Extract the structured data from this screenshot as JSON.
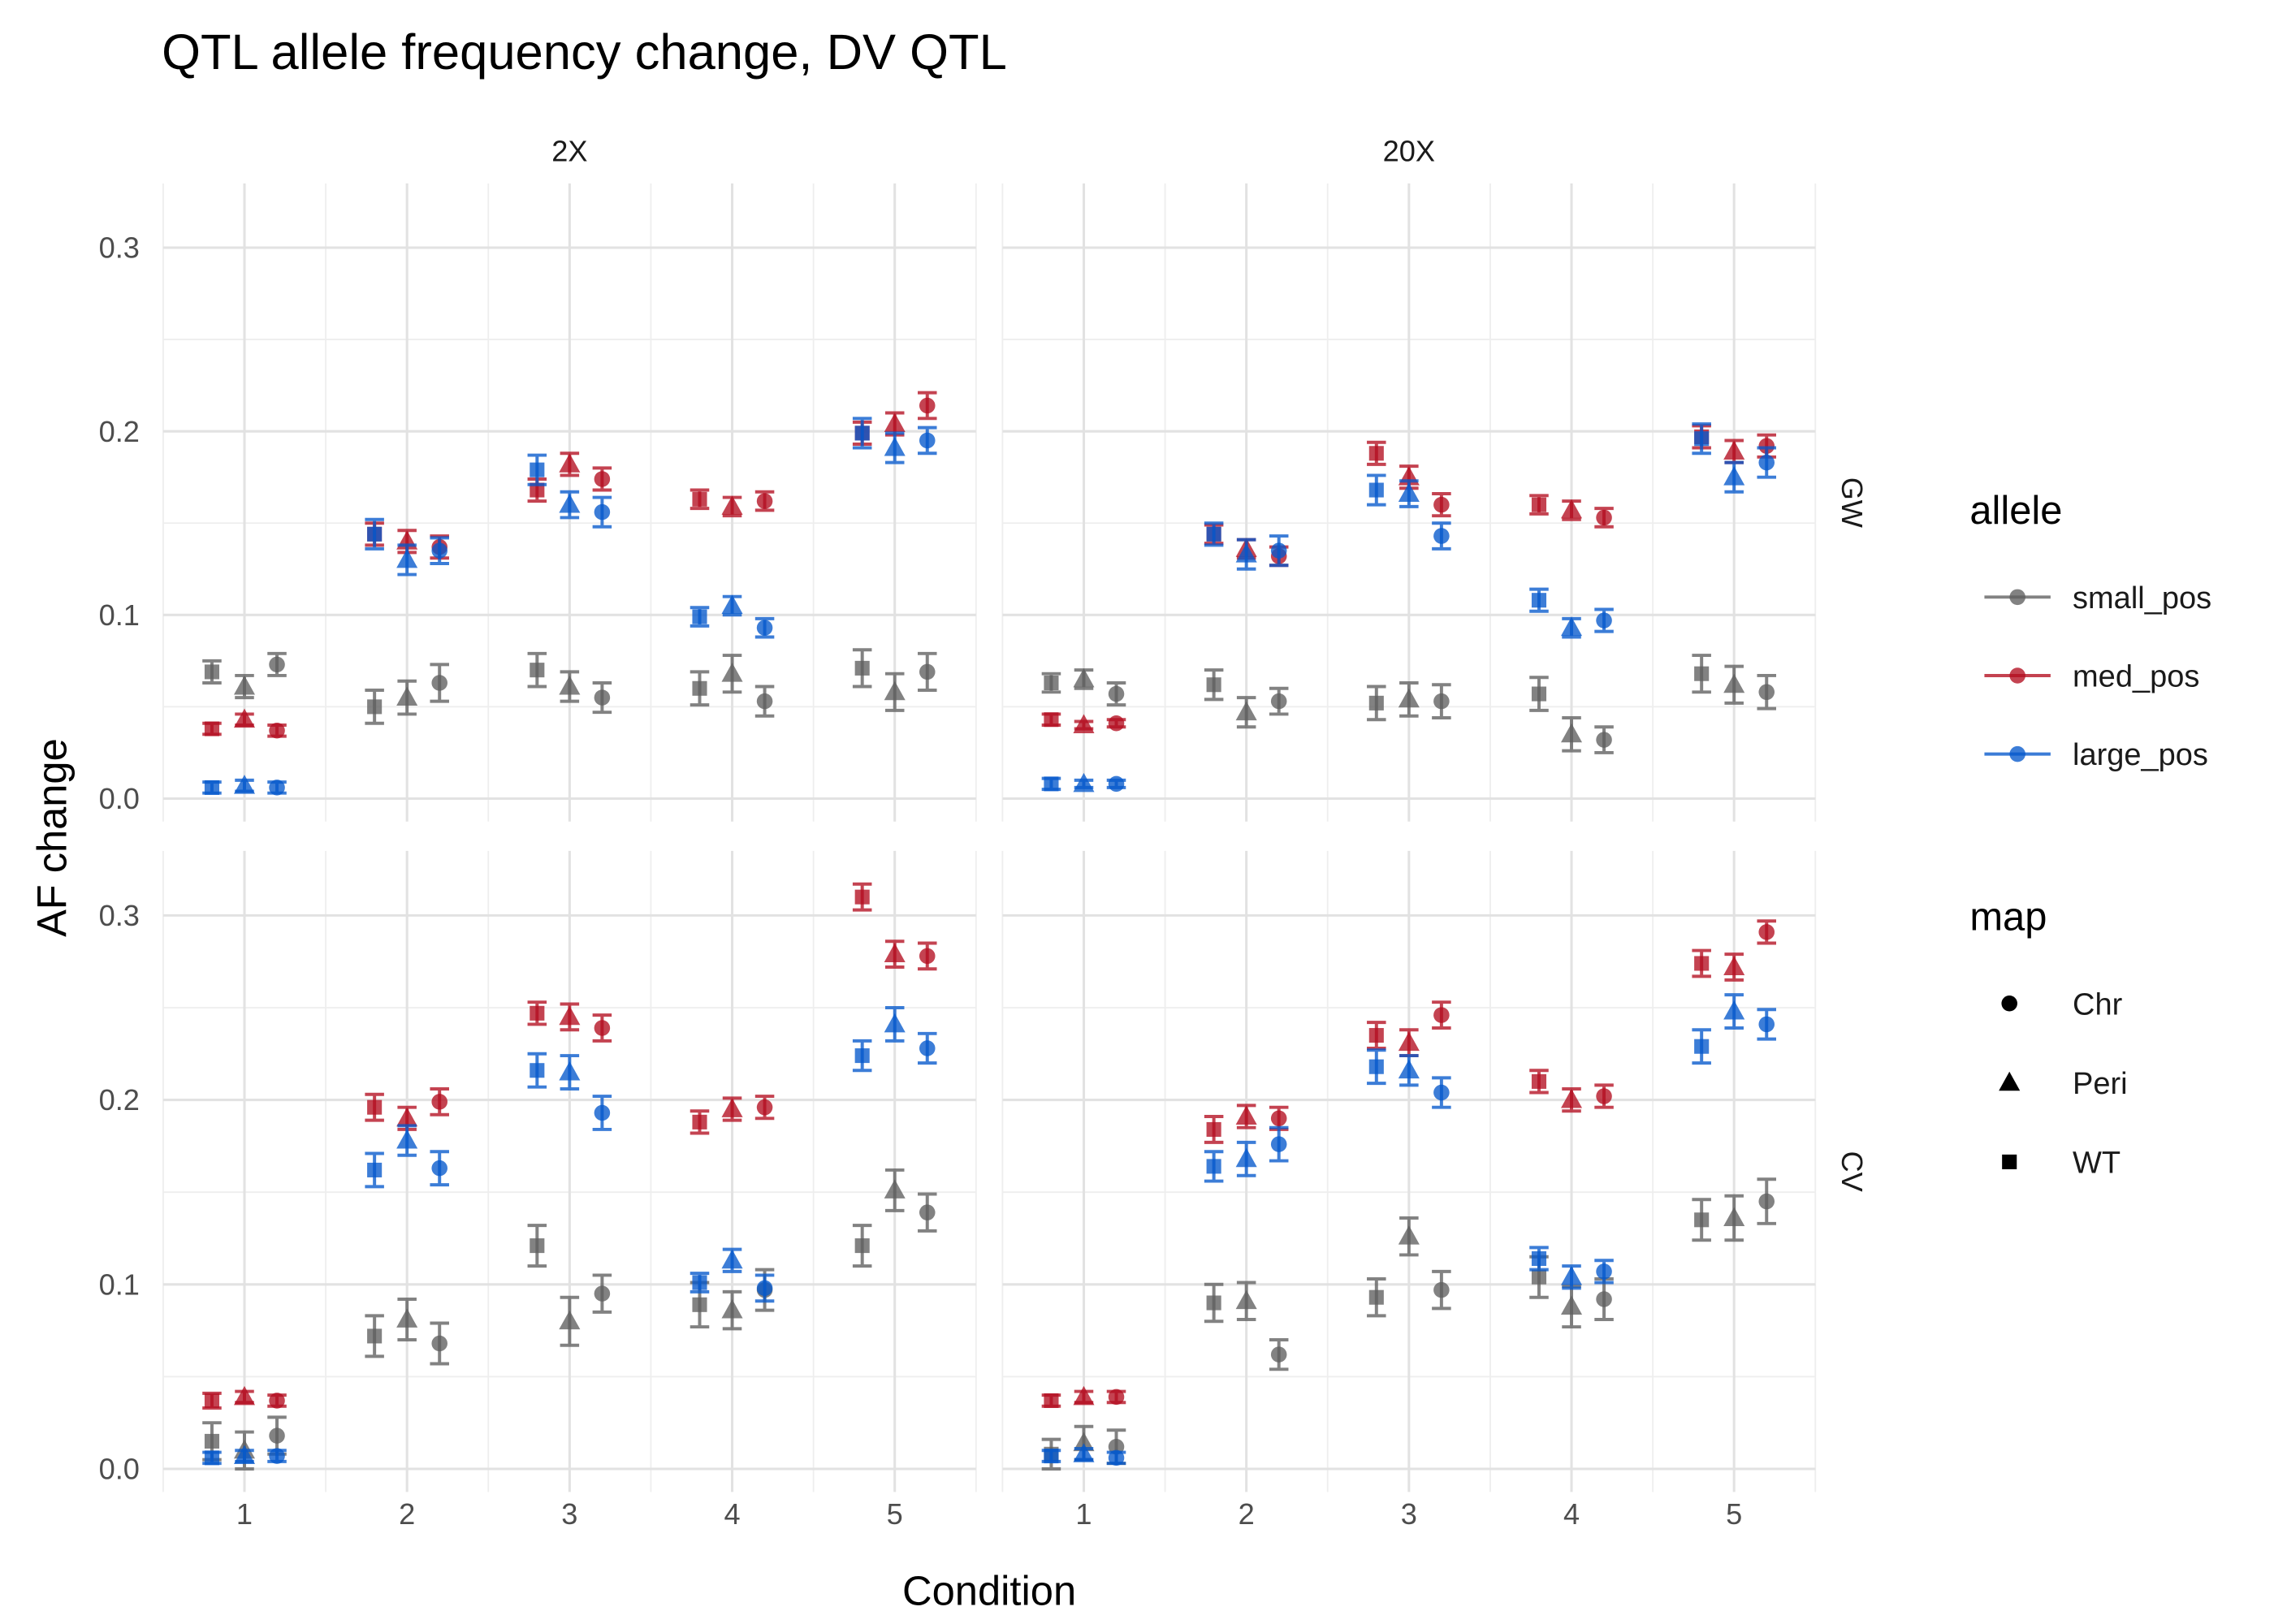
{
  "chart_data": {
    "type": "scatter",
    "title": "QTL allele frequency change, DV QTL",
    "xlabel": "Condition",
    "ylabel": "AF change",
    "x": [
      1,
      2,
      3,
      4,
      5
    ],
    "x_ticks": [
      1,
      2,
      3,
      4,
      5
    ],
    "y_ticks": [
      0,
      0.1,
      0.2,
      0.3
    ],
    "y_tick_labels": [
      "0.0",
      "0.1",
      "0.2",
      "0.3"
    ],
    "xlim": [
      0.5,
      5.5
    ],
    "ylim": [
      -0.0125,
      0.335
    ],
    "grid": true,
    "legend_position": "right",
    "facet_cols": [
      "2X",
      "20X"
    ],
    "facet_rows": [
      "GW",
      "CV"
    ],
    "legend": {
      "allele": {
        "title": "allele",
        "items": [
          {
            "name": "small_pos",
            "color": "#5f5f5f"
          },
          {
            "name": "med_pos",
            "color": "#b40e20"
          },
          {
            "name": "large_pos",
            "color": "#0558cc"
          }
        ]
      },
      "map": {
        "title": "map",
        "items": [
          {
            "name": "Chr",
            "shape": "circle"
          },
          {
            "name": "Peri",
            "shape": "triangle"
          },
          {
            "name": "WT",
            "shape": "square"
          }
        ]
      }
    },
    "facets": [
      {
        "col": "2X",
        "row": "GW",
        "series": [
          {
            "allele": "small_pos",
            "map": "WT",
            "values": [
              0.069,
              0.05,
              0.07,
              0.06,
              0.071
            ],
            "err": [
              0.006,
              0.009,
              0.009,
              0.009,
              0.01
            ]
          },
          {
            "allele": "small_pos",
            "map": "Peri",
            "values": [
              0.061,
              0.055,
              0.061,
              0.068,
              0.058
            ],
            "err": [
              0.006,
              0.009,
              0.008,
              0.01,
              0.01
            ]
          },
          {
            "allele": "small_pos",
            "map": "Chr",
            "values": [
              0.073,
              0.063,
              0.055,
              0.053,
              0.069
            ],
            "err": [
              0.006,
              0.01,
              0.008,
              0.008,
              0.01
            ]
          },
          {
            "allele": "med_pos",
            "map": "WT",
            "values": [
              0.038,
              0.144,
              0.168,
              0.163,
              0.199
            ],
            "err": [
              0.003,
              0.006,
              0.006,
              0.005,
              0.006
            ]
          },
          {
            "allele": "med_pos",
            "map": "Peri",
            "values": [
              0.043,
              0.14,
              0.182,
              0.159,
              0.204
            ],
            "err": [
              0.003,
              0.006,
              0.006,
              0.005,
              0.006
            ]
          },
          {
            "allele": "med_pos",
            "map": "Chr",
            "values": [
              0.037,
              0.137,
              0.174,
              0.162,
              0.214
            ],
            "err": [
              0.003,
              0.006,
              0.006,
              0.005,
              0.007
            ]
          },
          {
            "allele": "large_pos",
            "map": "WT",
            "values": [
              0.006,
              0.144,
              0.179,
              0.099,
              0.199
            ],
            "err": [
              0.003,
              0.008,
              0.008,
              0.005,
              0.008
            ]
          },
          {
            "allele": "large_pos",
            "map": "Peri",
            "values": [
              0.007,
              0.13,
              0.16,
              0.105,
              0.191
            ],
            "err": [
              0.003,
              0.008,
              0.007,
              0.005,
              0.008
            ]
          },
          {
            "allele": "large_pos",
            "map": "Chr",
            "values": [
              0.006,
              0.135,
              0.156,
              0.093,
              0.195
            ],
            "err": [
              0.003,
              0.007,
              0.008,
              0.005,
              0.007
            ]
          }
        ]
      },
      {
        "col": "20X",
        "row": "GW",
        "series": [
          {
            "allele": "small_pos",
            "map": "WT",
            "values": [
              0.063,
              0.062,
              0.052,
              0.057,
              0.068
            ],
            "err": [
              0.005,
              0.008,
              0.009,
              0.009,
              0.01
            ]
          },
          {
            "allele": "small_pos",
            "map": "Peri",
            "values": [
              0.065,
              0.047,
              0.054,
              0.035,
              0.062
            ],
            "err": [
              0.005,
              0.008,
              0.009,
              0.009,
              0.01
            ]
          },
          {
            "allele": "small_pos",
            "map": "Chr",
            "values": [
              0.057,
              0.053,
              0.053,
              0.032,
              0.058
            ],
            "err": [
              0.006,
              0.007,
              0.009,
              0.007,
              0.009
            ]
          },
          {
            "allele": "med_pos",
            "map": "WT",
            "values": [
              0.043,
              0.144,
              0.188,
              0.16,
              0.197
            ],
            "err": [
              0.003,
              0.005,
              0.006,
              0.005,
              0.006
            ]
          },
          {
            "allele": "med_pos",
            "map": "Peri",
            "values": [
              0.04,
              0.136,
              0.175,
              0.157,
              0.189
            ],
            "err": [
              0.002,
              0.005,
              0.006,
              0.005,
              0.006
            ]
          },
          {
            "allele": "med_pos",
            "map": "Chr",
            "values": [
              0.041,
              0.132,
              0.16,
              0.153,
              0.192
            ],
            "err": [
              0.002,
              0.005,
              0.006,
              0.005,
              0.006
            ]
          },
          {
            "allele": "large_pos",
            "map": "WT",
            "values": [
              0.008,
              0.144,
              0.168,
              0.108,
              0.196
            ],
            "err": [
              0.003,
              0.006,
              0.008,
              0.006,
              0.008
            ]
          },
          {
            "allele": "large_pos",
            "map": "Peri",
            "values": [
              0.008,
              0.133,
              0.166,
              0.093,
              0.175
            ],
            "err": [
              0.002,
              0.008,
              0.007,
              0.005,
              0.008
            ]
          },
          {
            "allele": "large_pos",
            "map": "Chr",
            "values": [
              0.008,
              0.135,
              0.143,
              0.097,
              0.183
            ],
            "err": [
              0.002,
              0.008,
              0.007,
              0.006,
              0.008
            ]
          }
        ]
      },
      {
        "col": "2X",
        "row": "CV",
        "series": [
          {
            "allele": "small_pos",
            "map": "WT",
            "values": [
              0.015,
              0.072,
              0.121,
              0.089,
              0.121
            ],
            "err": [
              0.01,
              0.011,
              0.011,
              0.012,
              0.011
            ]
          },
          {
            "allele": "small_pos",
            "map": "Peri",
            "values": [
              0.01,
              0.081,
              0.08,
              0.086,
              0.151
            ],
            "err": [
              0.01,
              0.011,
              0.013,
              0.01,
              0.011
            ]
          },
          {
            "allele": "small_pos",
            "map": "Chr",
            "values": [
              0.018,
              0.068,
              0.095,
              0.097,
              0.139
            ],
            "err": [
              0.01,
              0.011,
              0.01,
              0.011,
              0.01
            ]
          },
          {
            "allele": "med_pos",
            "map": "WT",
            "values": [
              0.037,
              0.196,
              0.247,
              0.188,
              0.31
            ],
            "err": [
              0.004,
              0.007,
              0.006,
              0.006,
              0.007
            ]
          },
          {
            "allele": "med_pos",
            "map": "Peri",
            "values": [
              0.039,
              0.19,
              0.245,
              0.195,
              0.279
            ],
            "err": [
              0.003,
              0.006,
              0.007,
              0.006,
              0.007
            ]
          },
          {
            "allele": "med_pos",
            "map": "Chr",
            "values": [
              0.037,
              0.199,
              0.239,
              0.196,
              0.278
            ],
            "err": [
              0.003,
              0.007,
              0.007,
              0.006,
              0.007
            ]
          },
          {
            "allele": "large_pos",
            "map": "WT",
            "values": [
              0.006,
              0.162,
              0.216,
              0.101,
              0.224
            ],
            "err": [
              0.003,
              0.009,
              0.009,
              0.005,
              0.008
            ]
          },
          {
            "allele": "large_pos",
            "map": "Peri",
            "values": [
              0.007,
              0.178,
              0.215,
              0.113,
              0.241
            ],
            "err": [
              0.003,
              0.008,
              0.009,
              0.006,
              0.009
            ]
          },
          {
            "allele": "large_pos",
            "map": "Chr",
            "values": [
              0.007,
              0.163,
              0.193,
              0.098,
              0.228
            ],
            "err": [
              0.003,
              0.009,
              0.009,
              0.007,
              0.008
            ]
          }
        ]
      },
      {
        "col": "20X",
        "row": "CV",
        "series": [
          {
            "allele": "small_pos",
            "map": "WT",
            "values": [
              0.008,
              0.09,
              0.093,
              0.104,
              0.135
            ],
            "err": [
              0.008,
              0.01,
              0.01,
              0.011,
              0.011
            ]
          },
          {
            "allele": "small_pos",
            "map": "Peri",
            "values": [
              0.014,
              0.091,
              0.126,
              0.088,
              0.136
            ],
            "err": [
              0.009,
              0.01,
              0.01,
              0.011,
              0.012
            ]
          },
          {
            "allele": "small_pos",
            "map": "Chr",
            "values": [
              0.012,
              0.062,
              0.097,
              0.092,
              0.145
            ],
            "err": [
              0.009,
              0.008,
              0.01,
              0.011,
              0.012
            ]
          },
          {
            "allele": "med_pos",
            "map": "WT",
            "values": [
              0.037,
              0.184,
              0.235,
              0.21,
              0.274
            ],
            "err": [
              0.003,
              0.007,
              0.007,
              0.006,
              0.007
            ]
          },
          {
            "allele": "med_pos",
            "map": "Peri",
            "values": [
              0.039,
              0.191,
              0.231,
              0.2,
              0.272
            ],
            "err": [
              0.003,
              0.006,
              0.007,
              0.006,
              0.007
            ]
          },
          {
            "allele": "med_pos",
            "map": "Chr",
            "values": [
              0.039,
              0.19,
              0.246,
              0.202,
              0.291
            ],
            "err": [
              0.003,
              0.006,
              0.007,
              0.006,
              0.006
            ]
          },
          {
            "allele": "large_pos",
            "map": "WT",
            "values": [
              0.007,
              0.164,
              0.218,
              0.114,
              0.229
            ],
            "err": [
              0.003,
              0.008,
              0.009,
              0.006,
              0.009
            ]
          },
          {
            "allele": "large_pos",
            "map": "Peri",
            "values": [
              0.008,
              0.168,
              0.216,
              0.104,
              0.248
            ],
            "err": [
              0.003,
              0.009,
              0.008,
              0.006,
              0.009
            ]
          },
          {
            "allele": "large_pos",
            "map": "Chr",
            "values": [
              0.006,
              0.176,
              0.204,
              0.107,
              0.241
            ],
            "err": [
              0.003,
              0.009,
              0.008,
              0.006,
              0.008
            ]
          }
        ]
      }
    ]
  }
}
